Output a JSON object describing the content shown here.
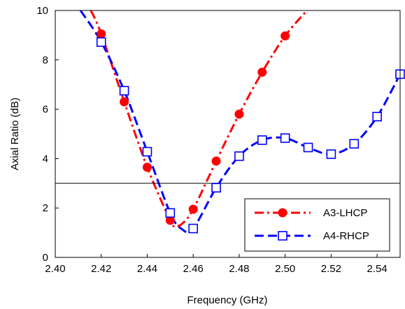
{
  "chart_data": {
    "type": "line",
    "xlabel": "Frequency (GHz)",
    "ylabel": "Axial Ratio (dB)",
    "xlim": [
      2.4,
      2.55
    ],
    "ylim": [
      0,
      10
    ],
    "xticks": [
      "2.40",
      "2.42",
      "2.44",
      "2.46",
      "2.48",
      "2.50",
      "2.52",
      "2.54"
    ],
    "yticks": [
      "0",
      "2",
      "4",
      "6",
      "8",
      "10"
    ],
    "grid": false,
    "legend_position": "bottom-right",
    "reference_line": {
      "y": 3
    },
    "series": [
      {
        "name": "A3-LHCP",
        "color": "#ff0000",
        "line_style": "dash-dot",
        "marker": "filled-circle",
        "markers": [
          {
            "x": 2.42,
            "y": 9.05
          },
          {
            "x": 2.43,
            "y": 6.3
          },
          {
            "x": 2.44,
            "y": 3.65
          },
          {
            "x": 2.45,
            "y": 1.5
          },
          {
            "x": 2.46,
            "y": 1.95
          },
          {
            "x": 2.47,
            "y": 3.9
          },
          {
            "x": 2.48,
            "y": 5.8
          },
          {
            "x": 2.49,
            "y": 7.5
          },
          {
            "x": 2.5,
            "y": 8.97
          }
        ],
        "curve": [
          {
            "x": 2.4155,
            "y": 10.0
          },
          {
            "x": 2.42,
            "y": 9.05
          },
          {
            "x": 2.43,
            "y": 6.3
          },
          {
            "x": 2.44,
            "y": 3.65
          },
          {
            "x": 2.45,
            "y": 1.5
          },
          {
            "x": 2.452,
            "y": 1.3
          },
          {
            "x": 2.455,
            "y": 1.35
          },
          {
            "x": 2.46,
            "y": 1.95
          },
          {
            "x": 2.47,
            "y": 3.9
          },
          {
            "x": 2.48,
            "y": 5.8
          },
          {
            "x": 2.49,
            "y": 7.5
          },
          {
            "x": 2.5,
            "y": 8.97
          },
          {
            "x": 2.5095,
            "y": 10.0
          }
        ]
      },
      {
        "name": "A4-RHCP",
        "color": "#0000ff",
        "line_style": "dashed",
        "marker": "open-square",
        "markers": [
          {
            "x": 2.42,
            "y": 8.72
          },
          {
            "x": 2.43,
            "y": 6.75
          },
          {
            "x": 2.44,
            "y": 4.28
          },
          {
            "x": 2.45,
            "y": 1.8
          },
          {
            "x": 2.46,
            "y": 1.17
          },
          {
            "x": 2.47,
            "y": 2.82
          },
          {
            "x": 2.48,
            "y": 4.1
          },
          {
            "x": 2.49,
            "y": 4.75
          },
          {
            "x": 2.5,
            "y": 4.83
          },
          {
            "x": 2.51,
            "y": 4.45
          },
          {
            "x": 2.52,
            "y": 4.18
          },
          {
            "x": 2.53,
            "y": 4.6
          },
          {
            "x": 2.54,
            "y": 5.7
          },
          {
            "x": 2.55,
            "y": 7.42
          }
        ],
        "curve": [
          {
            "x": 2.411,
            "y": 10.0
          },
          {
            "x": 2.42,
            "y": 8.72
          },
          {
            "x": 2.43,
            "y": 6.75
          },
          {
            "x": 2.44,
            "y": 4.28
          },
          {
            "x": 2.45,
            "y": 1.8
          },
          {
            "x": 2.455,
            "y": 1.15
          },
          {
            "x": 2.46,
            "y": 1.17
          },
          {
            "x": 2.47,
            "y": 2.82
          },
          {
            "x": 2.48,
            "y": 4.1
          },
          {
            "x": 2.49,
            "y": 4.75
          },
          {
            "x": 2.5,
            "y": 4.83
          },
          {
            "x": 2.51,
            "y": 4.45
          },
          {
            "x": 2.52,
            "y": 4.18
          },
          {
            "x": 2.53,
            "y": 4.6
          },
          {
            "x": 2.54,
            "y": 5.7
          },
          {
            "x": 2.55,
            "y": 7.42
          }
        ]
      }
    ]
  }
}
